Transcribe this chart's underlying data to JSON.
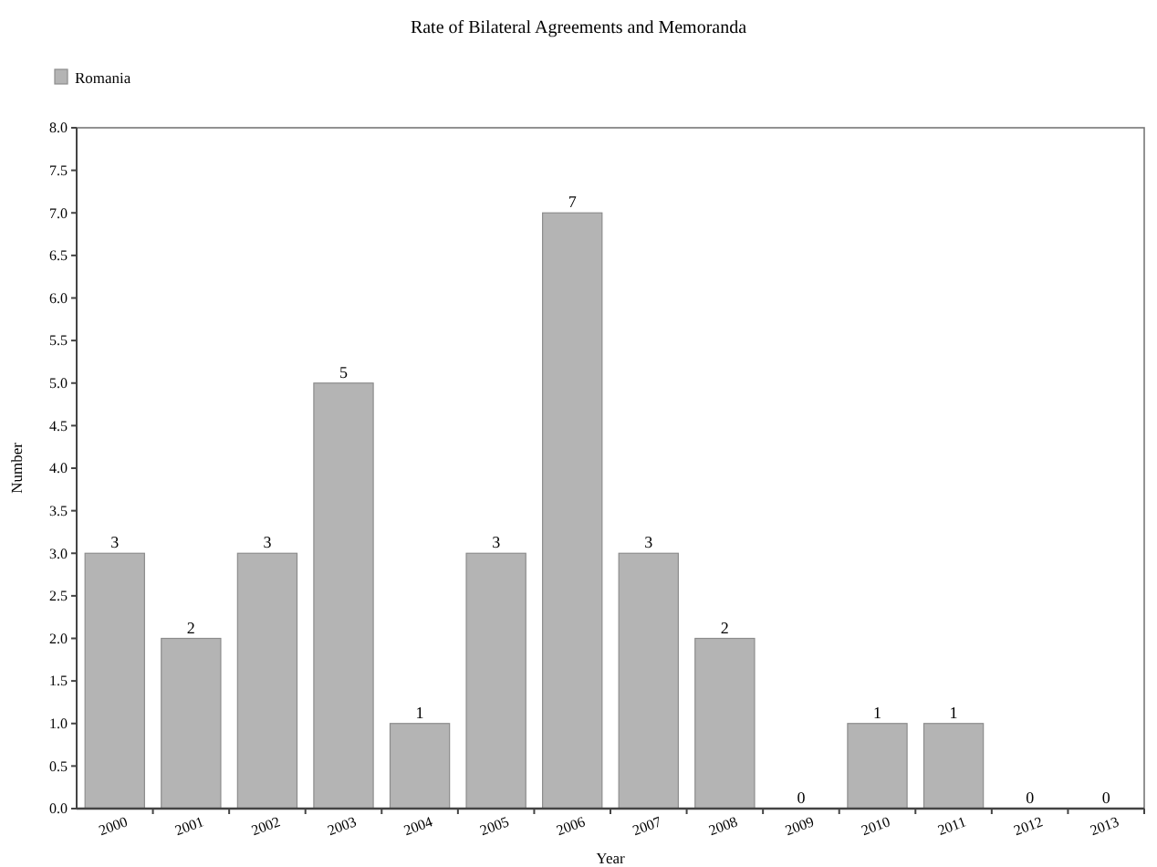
{
  "chart_data": {
    "type": "bar",
    "title": "Rate of Bilateral Agreements and Memoranda",
    "xlabel": "Year",
    "ylabel": "Number",
    "categories": [
      "2000",
      "2001",
      "2002",
      "2003",
      "2004",
      "2005",
      "2006",
      "2007",
      "2008",
      "2009",
      "2010",
      "2011",
      "2012",
      "2013"
    ],
    "series": [
      {
        "name": "Romania",
        "color": "#b4b4b4",
        "values": [
          3,
          2,
          3,
          5,
          1,
          3,
          7,
          3,
          2,
          0,
          1,
          1,
          0,
          0
        ]
      }
    ],
    "ylim": [
      0,
      8
    ],
    "yticks": [
      {
        "value": 0,
        "label": "0.0"
      },
      {
        "value": 0.5,
        "label": "0.5"
      },
      {
        "value": 1,
        "label": "1.0"
      },
      {
        "value": 1.5,
        "label": "1.5"
      },
      {
        "value": 2,
        "label": "2.0"
      },
      {
        "value": 2.5,
        "label": "2.5"
      },
      {
        "value": 3,
        "label": "3.0"
      },
      {
        "value": 3.5,
        "label": "3.5"
      },
      {
        "value": 4,
        "label": "4.0"
      },
      {
        "value": 4.5,
        "label": "4.5"
      },
      {
        "value": 5,
        "label": "5.0"
      },
      {
        "value": 5.5,
        "label": "5.5"
      },
      {
        "value": 6,
        "label": "6.0"
      },
      {
        "value": 6.5,
        "label": "6.5"
      },
      {
        "value": 7,
        "label": "7.0"
      },
      {
        "value": 7.5,
        "label": "7.5"
      },
      {
        "value": 8,
        "label": "8.0"
      }
    ],
    "data_labels": true,
    "legend": "top left",
    "grid": false
  }
}
